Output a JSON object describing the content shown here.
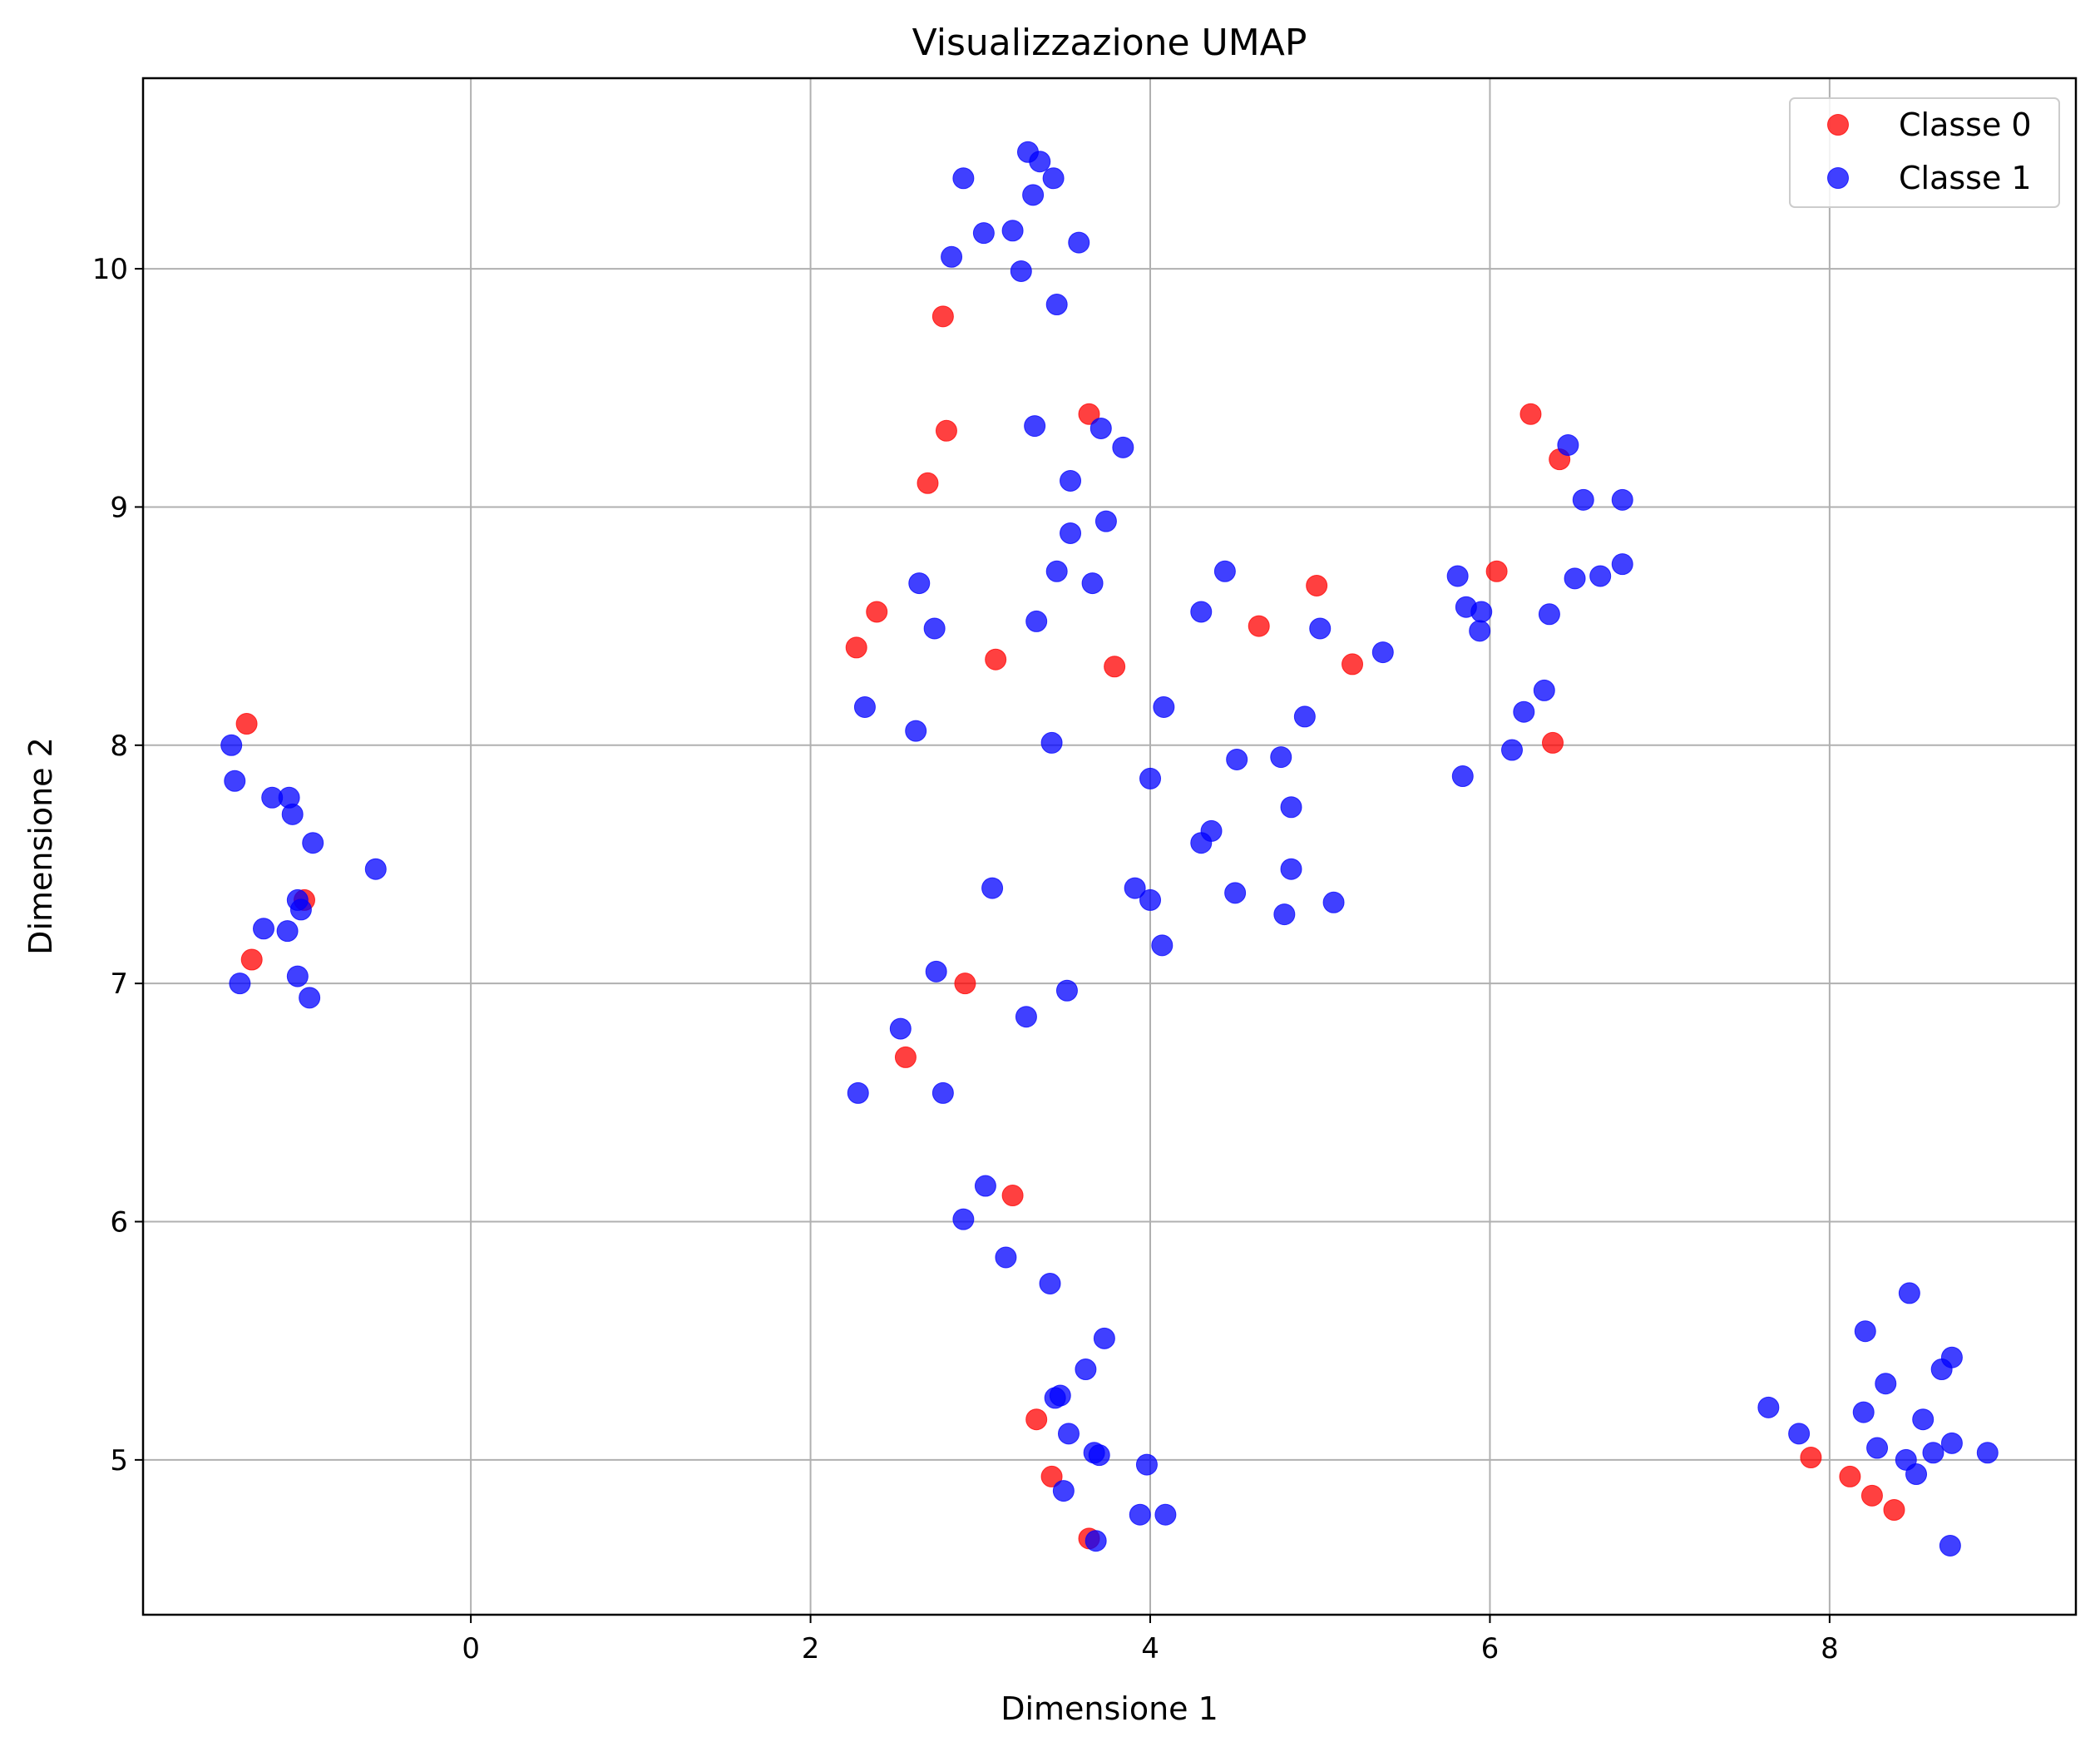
{
  "chart_data": {
    "type": "scatter",
    "title": "Visualizzazione UMAP",
    "xlabel": "Dimensione 1",
    "ylabel": "Dimensione 2",
    "xlim": [
      -1.93,
      9.45
    ],
    "ylim": [
      4.35,
      10.8
    ],
    "xticks": [
      0,
      2,
      4,
      6,
      8
    ],
    "yticks": [
      5,
      6,
      7,
      8,
      9,
      10
    ],
    "grid": true,
    "legend_position": "top-right",
    "series": [
      {
        "name": "Classe 0",
        "color": "#ff0000",
        "points": [
          [
            -1.32,
            8.09
          ],
          [
            -1.29,
            7.1
          ],
          [
            -0.98,
            7.35
          ],
          [
            2.27,
            8.41
          ],
          [
            2.39,
            8.56
          ],
          [
            2.56,
            6.69
          ],
          [
            2.69,
            9.1
          ],
          [
            2.78,
            9.8
          ],
          [
            2.8,
            9.32
          ],
          [
            2.91,
            7.0
          ],
          [
            3.09,
            8.36
          ],
          [
            3.19,
            6.11
          ],
          [
            3.64,
            9.39
          ],
          [
            3.79,
            8.33
          ],
          [
            4.64,
            8.5
          ],
          [
            4.98,
            8.67
          ],
          [
            5.19,
            8.34
          ],
          [
            6.04,
            8.73
          ],
          [
            6.24,
            9.39
          ],
          [
            6.37,
            8.01
          ],
          [
            6.41,
            9.2
          ],
          [
            3.33,
            5.17
          ],
          [
            3.42,
            4.93
          ],
          [
            3.64,
            4.67
          ],
          [
            7.89,
            5.01
          ],
          [
            8.12,
            4.93
          ],
          [
            8.25,
            4.85
          ],
          [
            8.38,
            4.79
          ]
        ]
      },
      {
        "name": "Classe 1",
        "color": "#0000ff",
        "points": [
          [
            -1.41,
            8.0
          ],
          [
            -1.39,
            7.85
          ],
          [
            -1.17,
            7.78
          ],
          [
            -1.07,
            7.78
          ],
          [
            -1.05,
            7.71
          ],
          [
            -0.93,
            7.59
          ],
          [
            -0.56,
            7.48
          ],
          [
            -1.02,
            7.35
          ],
          [
            -1.0,
            7.31
          ],
          [
            -1.22,
            7.23
          ],
          [
            -1.08,
            7.22
          ],
          [
            -1.02,
            7.03
          ],
          [
            -0.95,
            6.94
          ],
          [
            -1.36,
            7.0
          ],
          [
            3.28,
            10.49
          ],
          [
            3.35,
            10.45
          ],
          [
            2.9,
            10.38
          ],
          [
            3.43,
            10.38
          ],
          [
            3.31,
            10.31
          ],
          [
            3.19,
            10.16
          ],
          [
            3.02,
            10.15
          ],
          [
            3.58,
            10.11
          ],
          [
            2.83,
            10.05
          ],
          [
            3.24,
            9.99
          ],
          [
            3.45,
            9.85
          ],
          [
            3.32,
            9.34
          ],
          [
            3.71,
            9.33
          ],
          [
            3.84,
            9.25
          ],
          [
            3.53,
            9.11
          ],
          [
            3.53,
            8.89
          ],
          [
            3.74,
            8.94
          ],
          [
            2.64,
            8.68
          ],
          [
            3.45,
            8.73
          ],
          [
            3.66,
            8.68
          ],
          [
            2.73,
            8.49
          ],
          [
            3.33,
            8.52
          ],
          [
            2.32,
            8.16
          ],
          [
            2.62,
            8.06
          ],
          [
            3.42,
            8.01
          ],
          [
            4.08,
            8.16
          ],
          [
            4.3,
            8.56
          ],
          [
            4.44,
            8.73
          ],
          [
            5.0,
            8.49
          ],
          [
            5.37,
            8.39
          ],
          [
            4.91,
            8.12
          ],
          [
            4.0,
            7.86
          ],
          [
            4.51,
            7.94
          ],
          [
            4.77,
            7.95
          ],
          [
            4.83,
            7.74
          ],
          [
            4.36,
            7.64
          ],
          [
            4.3,
            7.59
          ],
          [
            4.83,
            7.48
          ],
          [
            3.91,
            7.4
          ],
          [
            4.0,
            7.35
          ],
          [
            4.5,
            7.38
          ],
          [
            4.79,
            7.29
          ],
          [
            5.08,
            7.34
          ],
          [
            4.07,
            7.16
          ],
          [
            3.07,
            7.4
          ],
          [
            2.74,
            7.05
          ],
          [
            3.51,
            6.97
          ],
          [
            3.27,
            6.86
          ],
          [
            2.53,
            6.81
          ],
          [
            2.28,
            6.54
          ],
          [
            2.78,
            6.54
          ],
          [
            5.81,
            8.71
          ],
          [
            5.86,
            8.58
          ],
          [
            5.95,
            8.56
          ],
          [
            5.94,
            8.48
          ],
          [
            6.35,
            8.55
          ],
          [
            6.46,
            9.26
          ],
          [
            6.55,
            9.03
          ],
          [
            6.78,
            9.03
          ],
          [
            6.5,
            8.7
          ],
          [
            6.65,
            8.71
          ],
          [
            6.78,
            8.76
          ],
          [
            6.32,
            8.23
          ],
          [
            6.2,
            8.14
          ],
          [
            6.13,
            7.98
          ],
          [
            5.84,
            7.87
          ],
          [
            3.03,
            6.15
          ],
          [
            2.9,
            6.01
          ],
          [
            3.15,
            5.85
          ],
          [
            3.41,
            5.74
          ],
          [
            3.73,
            5.51
          ],
          [
            3.62,
            5.38
          ],
          [
            3.47,
            5.27
          ],
          [
            3.44,
            5.26
          ],
          [
            3.52,
            5.11
          ],
          [
            3.67,
            5.03
          ],
          [
            3.7,
            5.02
          ],
          [
            3.98,
            4.98
          ],
          [
            3.49,
            4.87
          ],
          [
            3.94,
            4.77
          ],
          [
            4.09,
            4.77
          ],
          [
            3.68,
            4.66
          ],
          [
            8.47,
            5.7
          ],
          [
            8.21,
            5.54
          ],
          [
            8.72,
            5.43
          ],
          [
            8.66,
            5.38
          ],
          [
            8.33,
            5.32
          ],
          [
            7.64,
            5.22
          ],
          [
            8.2,
            5.2
          ],
          [
            8.55,
            5.17
          ],
          [
            7.82,
            5.11
          ],
          [
            8.28,
            5.05
          ],
          [
            8.72,
            5.07
          ],
          [
            8.61,
            5.03
          ],
          [
            8.93,
            5.03
          ],
          [
            8.45,
            5.0
          ],
          [
            8.51,
            4.94
          ],
          [
            8.71,
            4.64
          ]
        ]
      }
    ]
  }
}
